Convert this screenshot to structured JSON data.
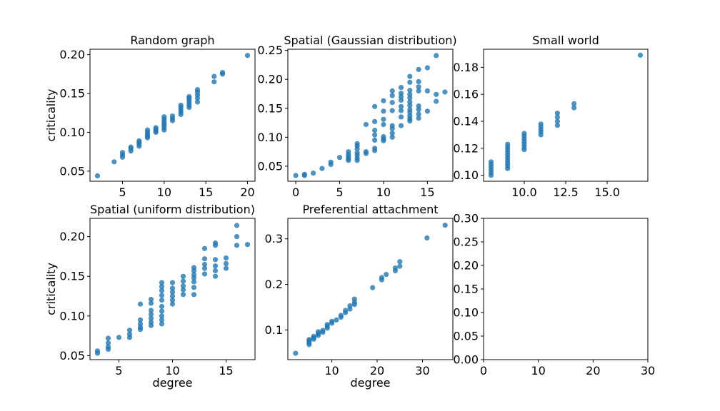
{
  "colors": {
    "marker": "#1f77b4"
  },
  "chart_data": [
    {
      "type": "scatter",
      "title": "Random graph",
      "xlabel": "",
      "ylabel": "criticality",
      "xlim": [
        1.1,
        20.9
      ],
      "ylim": [
        0.037,
        0.207
      ],
      "xticks": [
        5,
        10,
        15,
        20
      ],
      "xtick_labels": [
        "5",
        "10",
        "15",
        "20"
      ],
      "yticks": [
        0.05,
        0.1,
        0.15,
        0.2
      ],
      "ytick_labels": [
        "0.05",
        "0.10",
        "0.15",
        "0.20"
      ],
      "points": [
        [
          2,
          0.044
        ],
        [
          4,
          0.062
        ],
        [
          5,
          0.068
        ],
        [
          5,
          0.071
        ],
        [
          5,
          0.074
        ],
        [
          6,
          0.076
        ],
        [
          6,
          0.079
        ],
        [
          6,
          0.081
        ],
        [
          7,
          0.082
        ],
        [
          7,
          0.085
        ],
        [
          7,
          0.087
        ],
        [
          7,
          0.089
        ],
        [
          8,
          0.093
        ],
        [
          8,
          0.095
        ],
        [
          8,
          0.097
        ],
        [
          8,
          0.1
        ],
        [
          8,
          0.103
        ],
        [
          9,
          0.1
        ],
        [
          9,
          0.102
        ],
        [
          9,
          0.104
        ],
        [
          9,
          0.106
        ],
        [
          10,
          0.103
        ],
        [
          10,
          0.106
        ],
        [
          10,
          0.109
        ],
        [
          10,
          0.111
        ],
        [
          10,
          0.114
        ],
        [
          10,
          0.117
        ],
        [
          10,
          0.12
        ],
        [
          11,
          0.115
        ],
        [
          11,
          0.118
        ],
        [
          11,
          0.121
        ],
        [
          12,
          0.123
        ],
        [
          12,
          0.126
        ],
        [
          12,
          0.129
        ],
        [
          12,
          0.132
        ],
        [
          12,
          0.135
        ],
        [
          13,
          0.132
        ],
        [
          13,
          0.135
        ],
        [
          13,
          0.138
        ],
        [
          13,
          0.141
        ],
        [
          13,
          0.144
        ],
        [
          13,
          0.146
        ],
        [
          14,
          0.139
        ],
        [
          14,
          0.144
        ],
        [
          14,
          0.148
        ],
        [
          14,
          0.152
        ],
        [
          14,
          0.155
        ],
        [
          16,
          0.165
        ],
        [
          16,
          0.172
        ],
        [
          17,
          0.175
        ],
        [
          17,
          0.177
        ],
        [
          20,
          0.199
        ]
      ]
    },
    {
      "type": "scatter",
      "title": "Spatial (Gaussian distribution)",
      "xlabel": "",
      "ylabel": "",
      "xlim": [
        -0.9,
        17.9
      ],
      "ylim": [
        0.024,
        0.252
      ],
      "xticks": [
        0,
        5,
        10,
        15
      ],
      "xtick_labels": [
        "0",
        "5",
        "10",
        "15"
      ],
      "yticks": [
        0.05,
        0.1,
        0.15,
        0.2,
        0.25
      ],
      "ytick_labels": [
        "0.05",
        "0.10",
        "0.15",
        "0.20",
        "0.25"
      ],
      "points": [
        [
          0,
          0.034
        ],
        [
          1,
          0.034
        ],
        [
          1,
          0.036
        ],
        [
          2,
          0.038
        ],
        [
          3,
          0.046
        ],
        [
          4,
          0.053
        ],
        [
          4,
          0.057
        ],
        [
          5,
          0.065
        ],
        [
          6,
          0.06
        ],
        [
          6,
          0.063
        ],
        [
          6,
          0.066
        ],
        [
          6,
          0.07
        ],
        [
          6,
          0.075
        ],
        [
          7,
          0.06
        ],
        [
          7,
          0.064
        ],
        [
          7,
          0.069
        ],
        [
          7,
          0.073
        ],
        [
          7,
          0.08
        ],
        [
          7,
          0.085
        ],
        [
          7,
          0.089
        ],
        [
          8,
          0.072
        ],
        [
          8,
          0.075
        ],
        [
          8,
          0.122
        ],
        [
          9,
          0.077
        ],
        [
          9,
          0.081
        ],
        [
          9,
          0.095
        ],
        [
          9,
          0.104
        ],
        [
          9,
          0.112
        ],
        [
          9,
          0.127
        ],
        [
          9,
          0.153
        ],
        [
          10,
          0.094
        ],
        [
          10,
          0.097
        ],
        [
          10,
          0.101
        ],
        [
          10,
          0.122
        ],
        [
          10,
          0.131
        ],
        [
          10,
          0.145
        ],
        [
          10,
          0.163
        ],
        [
          11,
          0.1
        ],
        [
          11,
          0.107
        ],
        [
          11,
          0.115
        ],
        [
          11,
          0.12
        ],
        [
          11,
          0.146
        ],
        [
          11,
          0.16
        ],
        [
          11,
          0.172
        ],
        [
          11,
          0.18
        ],
        [
          12,
          0.12
        ],
        [
          12,
          0.135
        ],
        [
          12,
          0.146
        ],
        [
          12,
          0.153
        ],
        [
          12,
          0.164
        ],
        [
          12,
          0.17
        ],
        [
          12,
          0.176
        ],
        [
          12,
          0.186
        ],
        [
          13,
          0.128
        ],
        [
          13,
          0.132
        ],
        [
          13,
          0.137
        ],
        [
          13,
          0.143
        ],
        [
          13,
          0.148
        ],
        [
          13,
          0.155
        ],
        [
          13,
          0.161
        ],
        [
          13,
          0.168
        ],
        [
          13,
          0.174
        ],
        [
          13,
          0.181
        ],
        [
          13,
          0.195
        ],
        [
          13,
          0.205
        ],
        [
          14,
          0.133
        ],
        [
          14,
          0.14
        ],
        [
          14,
          0.148
        ],
        [
          14,
          0.154
        ],
        [
          14,
          0.18
        ],
        [
          14,
          0.187
        ],
        [
          14,
          0.196
        ],
        [
          14,
          0.217
        ],
        [
          15,
          0.145
        ],
        [
          15,
          0.18
        ],
        [
          15,
          0.22
        ],
        [
          16,
          0.162
        ],
        [
          16,
          0.174
        ],
        [
          16,
          0.241
        ],
        [
          17,
          0.178
        ]
      ]
    },
    {
      "type": "scatter",
      "title": "Small world",
      "xlabel": "",
      "ylabel": "",
      "xlim": [
        7.55,
        17.45
      ],
      "ylim": [
        0.0956,
        0.1934
      ],
      "xticks": [
        10,
        12.5,
        15
      ],
      "xtick_labels": [
        "10.0",
        "12.5",
        "15.0"
      ],
      "yticks": [
        0.1,
        0.12,
        0.14,
        0.16,
        0.18
      ],
      "ytick_labels": [
        "0.10",
        "0.12",
        "0.14",
        "0.16",
        "0.18"
      ],
      "points": [
        [
          8,
          0.1
        ],
        [
          8,
          0.102
        ],
        [
          8,
          0.104
        ],
        [
          8,
          0.106
        ],
        [
          8,
          0.108
        ],
        [
          8,
          0.11
        ],
        [
          9,
          0.105
        ],
        [
          9,
          0.107
        ],
        [
          9,
          0.109
        ],
        [
          9,
          0.111
        ],
        [
          9,
          0.113
        ],
        [
          9,
          0.115
        ],
        [
          9,
          0.117
        ],
        [
          9,
          0.119
        ],
        [
          9,
          0.121
        ],
        [
          9,
          0.123
        ],
        [
          10,
          0.119
        ],
        [
          10,
          0.121
        ],
        [
          10,
          0.123
        ],
        [
          10,
          0.125
        ],
        [
          10,
          0.127
        ],
        [
          10,
          0.129
        ],
        [
          10,
          0.131
        ],
        [
          11,
          0.13
        ],
        [
          11,
          0.132
        ],
        [
          11,
          0.134
        ],
        [
          11,
          0.136
        ],
        [
          11,
          0.138
        ],
        [
          12,
          0.137
        ],
        [
          12,
          0.14
        ],
        [
          12,
          0.143
        ],
        [
          12,
          0.146
        ],
        [
          13,
          0.15
        ],
        [
          13,
          0.153
        ],
        [
          17,
          0.189
        ]
      ]
    },
    {
      "type": "scatter",
      "title": "Spatial (uniform distribution)",
      "xlabel": "degree",
      "ylabel": "criticality",
      "xlim": [
        2.3,
        17.7
      ],
      "ylim": [
        0.045,
        0.223
      ],
      "xticks": [
        5,
        10,
        15
      ],
      "xtick_labels": [
        "5",
        "10",
        "15"
      ],
      "yticks": [
        0.05,
        0.1,
        0.15,
        0.2
      ],
      "ytick_labels": [
        "0.05",
        "0.10",
        "0.15",
        "0.20"
      ],
      "points": [
        [
          3,
          0.053
        ],
        [
          3,
          0.056
        ],
        [
          4,
          0.058
        ],
        [
          4,
          0.061
        ],
        [
          4,
          0.066
        ],
        [
          4,
          0.072
        ],
        [
          5,
          0.073
        ],
        [
          6,
          0.073
        ],
        [
          6,
          0.077
        ],
        [
          6,
          0.082
        ],
        [
          7,
          0.083
        ],
        [
          7,
          0.086
        ],
        [
          7,
          0.09
        ],
        [
          7,
          0.095
        ],
        [
          7,
          0.115
        ],
        [
          8,
          0.088
        ],
        [
          8,
          0.092
        ],
        [
          8,
          0.097
        ],
        [
          8,
          0.102
        ],
        [
          8,
          0.107
        ],
        [
          8,
          0.116
        ],
        [
          8,
          0.121
        ],
        [
          9,
          0.09
        ],
        [
          9,
          0.095
        ],
        [
          9,
          0.1
        ],
        [
          9,
          0.106
        ],
        [
          9,
          0.112
        ],
        [
          9,
          0.12
        ],
        [
          9,
          0.126
        ],
        [
          9,
          0.132
        ],
        [
          9,
          0.137
        ],
        [
          9,
          0.142
        ],
        [
          10,
          0.115
        ],
        [
          10,
          0.12
        ],
        [
          10,
          0.125
        ],
        [
          10,
          0.13
        ],
        [
          10,
          0.135
        ],
        [
          10,
          0.142
        ],
        [
          11,
          0.127
        ],
        [
          11,
          0.133
        ],
        [
          11,
          0.138
        ],
        [
          11,
          0.144
        ],
        [
          11,
          0.15
        ],
        [
          12,
          0.127
        ],
        [
          12,
          0.136
        ],
        [
          12,
          0.143
        ],
        [
          12,
          0.148
        ],
        [
          12,
          0.152
        ],
        [
          12,
          0.157
        ],
        [
          12,
          0.161
        ],
        [
          13,
          0.153
        ],
        [
          13,
          0.16
        ],
        [
          13,
          0.165
        ],
        [
          13,
          0.172
        ],
        [
          13,
          0.185
        ],
        [
          14,
          0.15
        ],
        [
          14,
          0.157
        ],
        [
          14,
          0.163
        ],
        [
          14,
          0.171
        ],
        [
          14,
          0.189
        ],
        [
          14,
          0.192
        ],
        [
          15,
          0.16
        ],
        [
          15,
          0.166
        ],
        [
          15,
          0.173
        ],
        [
          16,
          0.189
        ],
        [
          16,
          0.2
        ],
        [
          16,
          0.214
        ],
        [
          17,
          0.19
        ]
      ]
    },
    {
      "type": "scatter",
      "title": "Preferential attachment",
      "xlabel": "degree",
      "ylabel": "",
      "xlim": [
        0.3,
        36.7
      ],
      "ylim": [
        0.035,
        0.345
      ],
      "xticks": [
        10,
        20,
        30
      ],
      "xtick_labels": [
        "10",
        "20",
        "30"
      ],
      "yticks": [
        0.1,
        0.2,
        0.3
      ],
      "ytick_labels": [
        "0.1",
        "0.2",
        "0.3"
      ],
      "points": [
        [
          2,
          0.049
        ],
        [
          5,
          0.068
        ],
        [
          5,
          0.072
        ],
        [
          5,
          0.076
        ],
        [
          5,
          0.079
        ],
        [
          6,
          0.08
        ],
        [
          6,
          0.083
        ],
        [
          6,
          0.086
        ],
        [
          7,
          0.088
        ],
        [
          7,
          0.092
        ],
        [
          7,
          0.096
        ],
        [
          8,
          0.095
        ],
        [
          8,
          0.099
        ],
        [
          9,
          0.104
        ],
        [
          9,
          0.108
        ],
        [
          9,
          0.112
        ],
        [
          10,
          0.115
        ],
        [
          10,
          0.119
        ],
        [
          11,
          0.122
        ],
        [
          12,
          0.128
        ],
        [
          12,
          0.132
        ],
        [
          13,
          0.138
        ],
        [
          13,
          0.143
        ],
        [
          14,
          0.146
        ],
        [
          14,
          0.153
        ],
        [
          15,
          0.156
        ],
        [
          15,
          0.161
        ],
        [
          15,
          0.168
        ],
        [
          19,
          0.193
        ],
        [
          21,
          0.21
        ],
        [
          21,
          0.215
        ],
        [
          22,
          0.222
        ],
        [
          24,
          0.23
        ],
        [
          24,
          0.236
        ],
        [
          25,
          0.24
        ],
        [
          25,
          0.25
        ],
        [
          31,
          0.302
        ],
        [
          35,
          0.33
        ]
      ]
    },
    {
      "type": "scatter",
      "title": "",
      "xlabel": "",
      "ylabel": "",
      "xlim": [
        0,
        30
      ],
      "ylim": [
        0,
        0.3
      ],
      "xticks": [
        0,
        10,
        20,
        30
      ],
      "xtick_labels": [
        "0",
        "10",
        "20",
        "30"
      ],
      "yticks": [
        0.0,
        0.05,
        0.1,
        0.15,
        0.2,
        0.25,
        0.3
      ],
      "ytick_labels": [
        "0.00",
        "0.05",
        "0.10",
        "0.15",
        "0.20",
        "0.25",
        "0.30"
      ],
      "points": []
    }
  ]
}
